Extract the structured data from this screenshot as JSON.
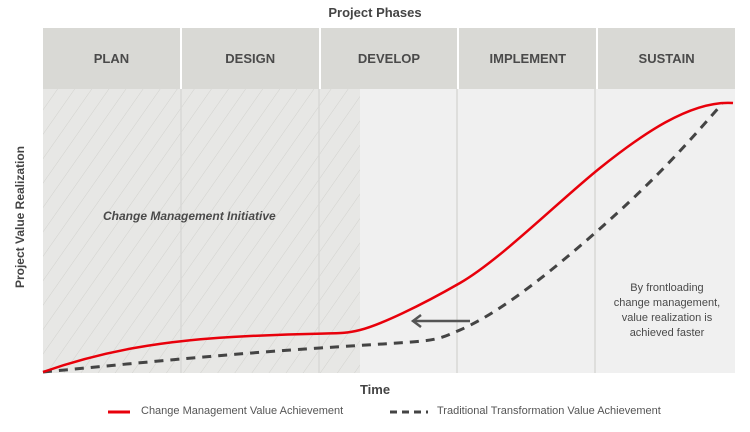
{
  "title": "Project Phases",
  "phases": [
    "PLAN",
    "DESIGN",
    "DEVELOP",
    "IMPLEMENT",
    "SUSTAIN"
  ],
  "y_axis_label": "Project Value Realization",
  "x_axis_label": "Time",
  "shaded_region_label": "Change Management Initiative",
  "annotation": "By frontloading change management, value realization is achieved faster",
  "legend": [
    {
      "label": "Change Management Value Achievement",
      "style": "solid",
      "color": "#e8000b"
    },
    {
      "label": "Traditional Transformation Value Achievement",
      "style": "dashed",
      "color": "#444444"
    }
  ],
  "arrow_icon": "arrow-left-icon"
}
